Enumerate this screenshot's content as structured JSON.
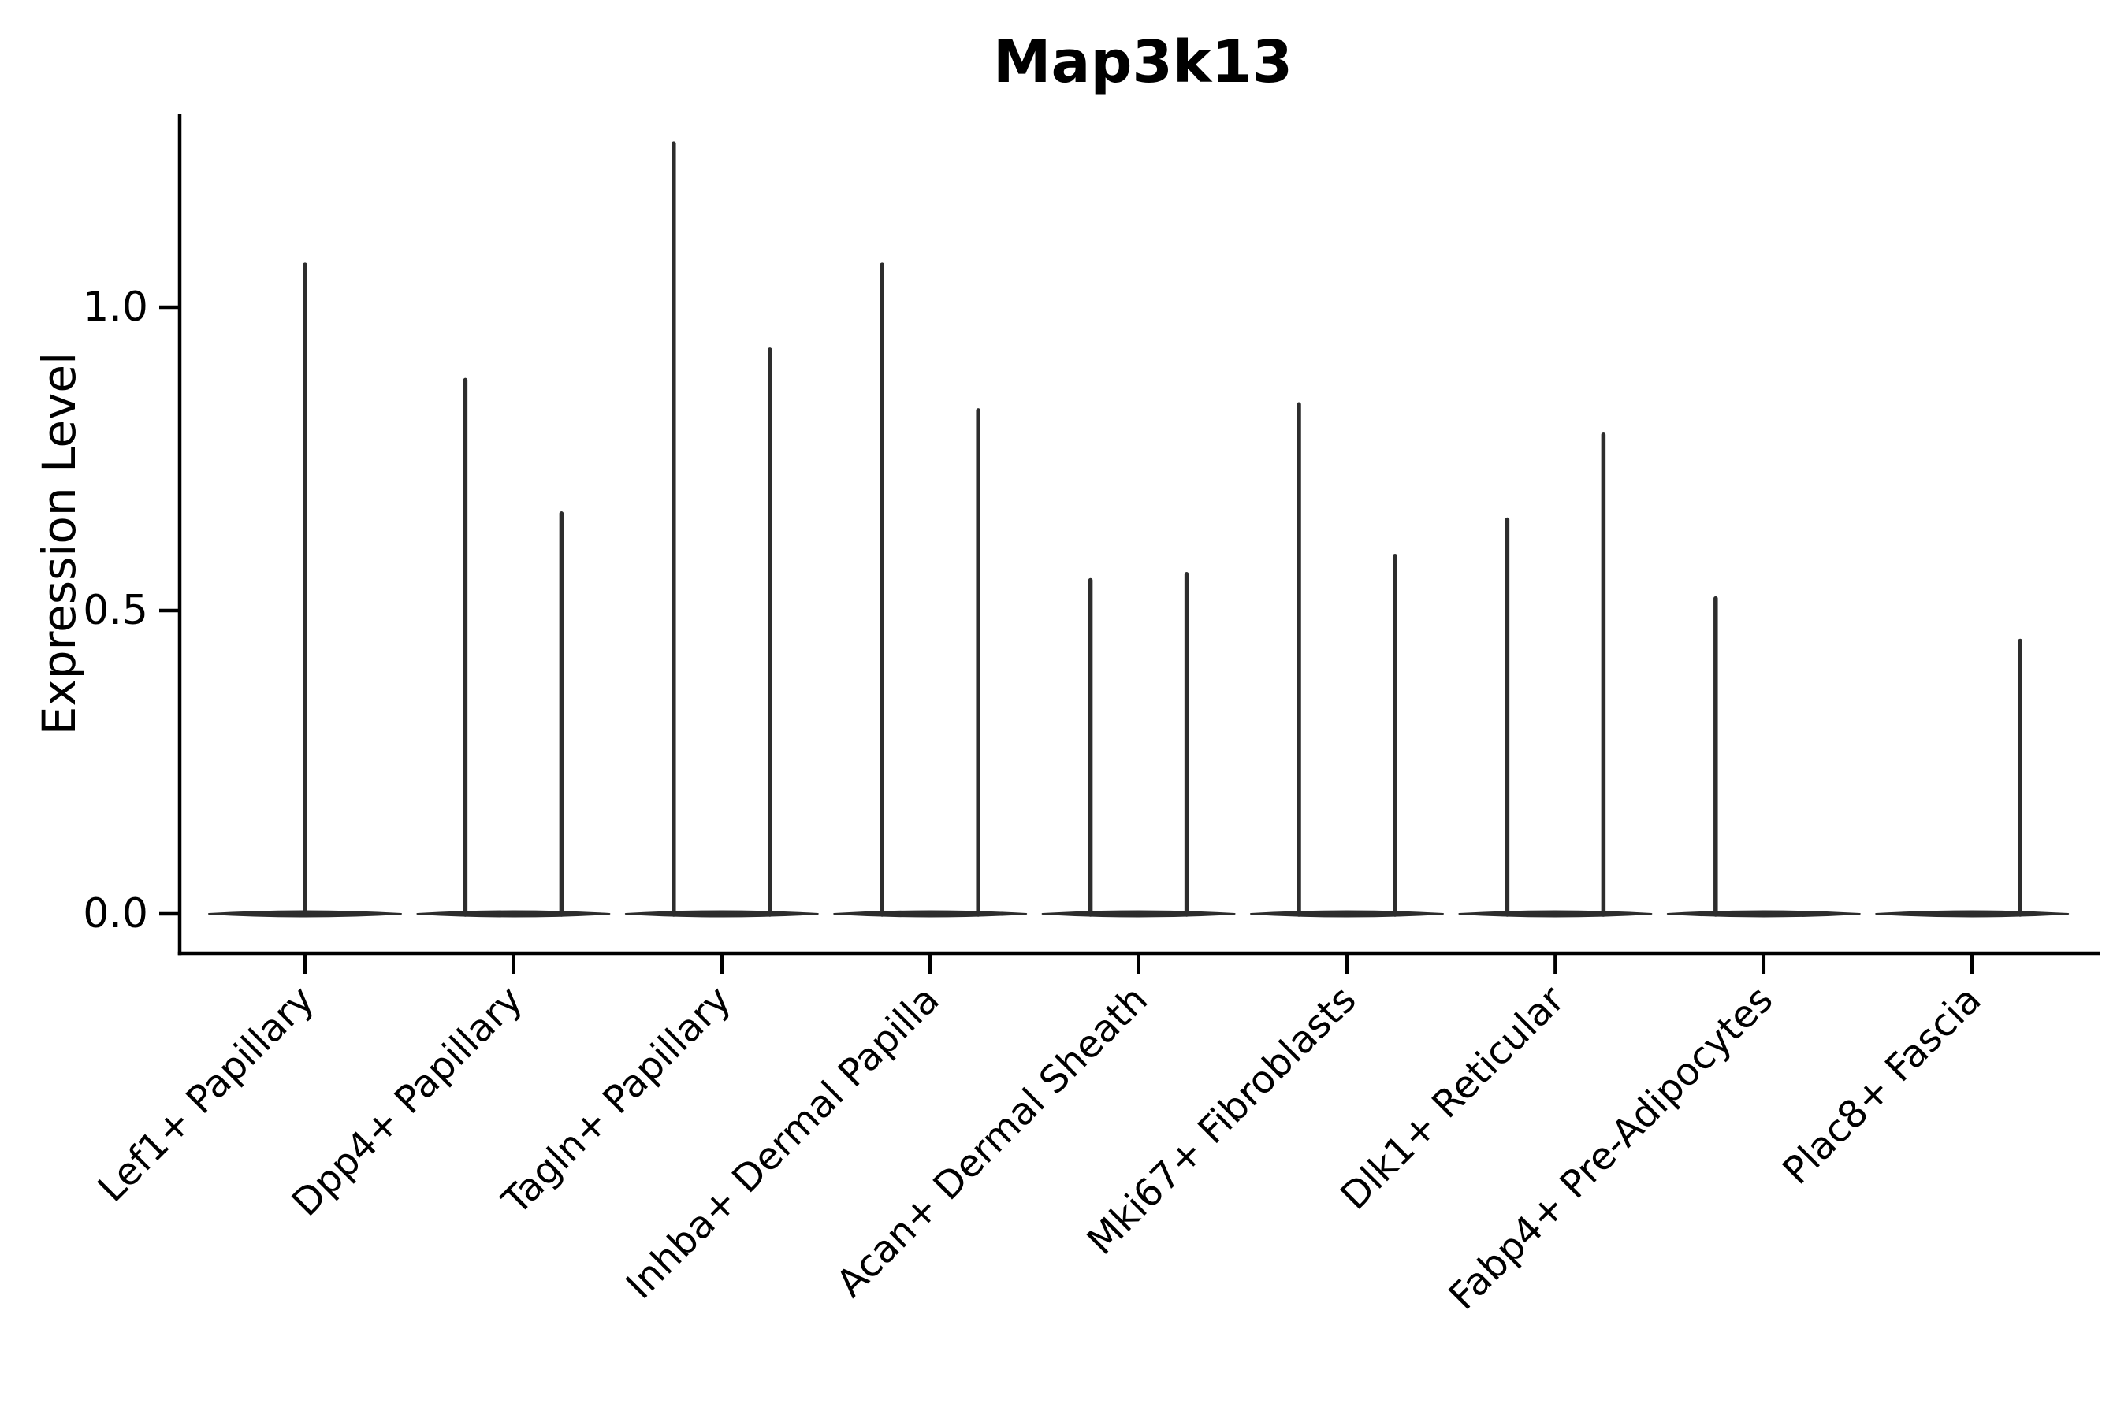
{
  "chart_data": {
    "type": "violin",
    "title": "Map3k13",
    "xlabel": "",
    "ylabel": "Expression Level",
    "ylim": [
      -0.065,
      1.32
    ],
    "yticks": [
      0.0,
      0.5,
      1.0
    ],
    "ytick_labels": [
      "0.0",
      "0.5",
      "1.0"
    ],
    "grid": false,
    "legend": "none",
    "violin_color": "#2d2d2d",
    "axis_color": "#000000",
    "background_color": "#ffffff",
    "categories": [
      "Lef1+ Papillary",
      "Dpp4+ Papillary",
      "Tagln+ Papillary",
      "Inhba+ Dermal Papilla",
      "Acan+ Dermal Sheath",
      "Mki67+ Fibroblasts",
      "Dlk1+ Reticular",
      "Fabp4+ Pre-Adipocytes",
      "Plac8+ Fascia"
    ],
    "series": [
      {
        "category": "Lef1+ Papillary",
        "violins": [
          {
            "position": "center",
            "max_expression": 1.07
          }
        ]
      },
      {
        "category": "Dpp4+ Papillary",
        "violins": [
          {
            "position": "left",
            "max_expression": 0.88
          },
          {
            "position": "right",
            "max_expression": 0.66
          }
        ]
      },
      {
        "category": "Tagln+ Papillary",
        "violins": [
          {
            "position": "left",
            "max_expression": 1.27
          },
          {
            "position": "right",
            "max_expression": 0.93
          }
        ]
      },
      {
        "category": "Inhba+ Dermal Papilla",
        "violins": [
          {
            "position": "left",
            "max_expression": 1.07
          },
          {
            "position": "right",
            "max_expression": 0.83
          }
        ]
      },
      {
        "category": "Acan+ Dermal Sheath",
        "violins": [
          {
            "position": "left",
            "max_expression": 0.55
          },
          {
            "position": "right",
            "max_expression": 0.56
          }
        ]
      },
      {
        "category": "Mki67+ Fibroblasts",
        "violins": [
          {
            "position": "left",
            "max_expression": 0.84
          },
          {
            "position": "right",
            "max_expression": 0.59
          }
        ]
      },
      {
        "category": "Dlk1+ Reticular",
        "violins": [
          {
            "position": "left",
            "max_expression": 0.65
          },
          {
            "position": "right",
            "max_expression": 0.79
          }
        ]
      },
      {
        "category": "Fabp4+ Pre-Adipocytes",
        "violins": [
          {
            "position": "left",
            "max_expression": 0.52
          },
          {
            "position": "right",
            "max_expression": 0.0
          }
        ]
      },
      {
        "category": "Plac8+ Fascia",
        "violins": [
          {
            "position": "left",
            "max_expression": 0.0
          },
          {
            "position": "right",
            "max_expression": 0.45
          }
        ]
      }
    ]
  }
}
